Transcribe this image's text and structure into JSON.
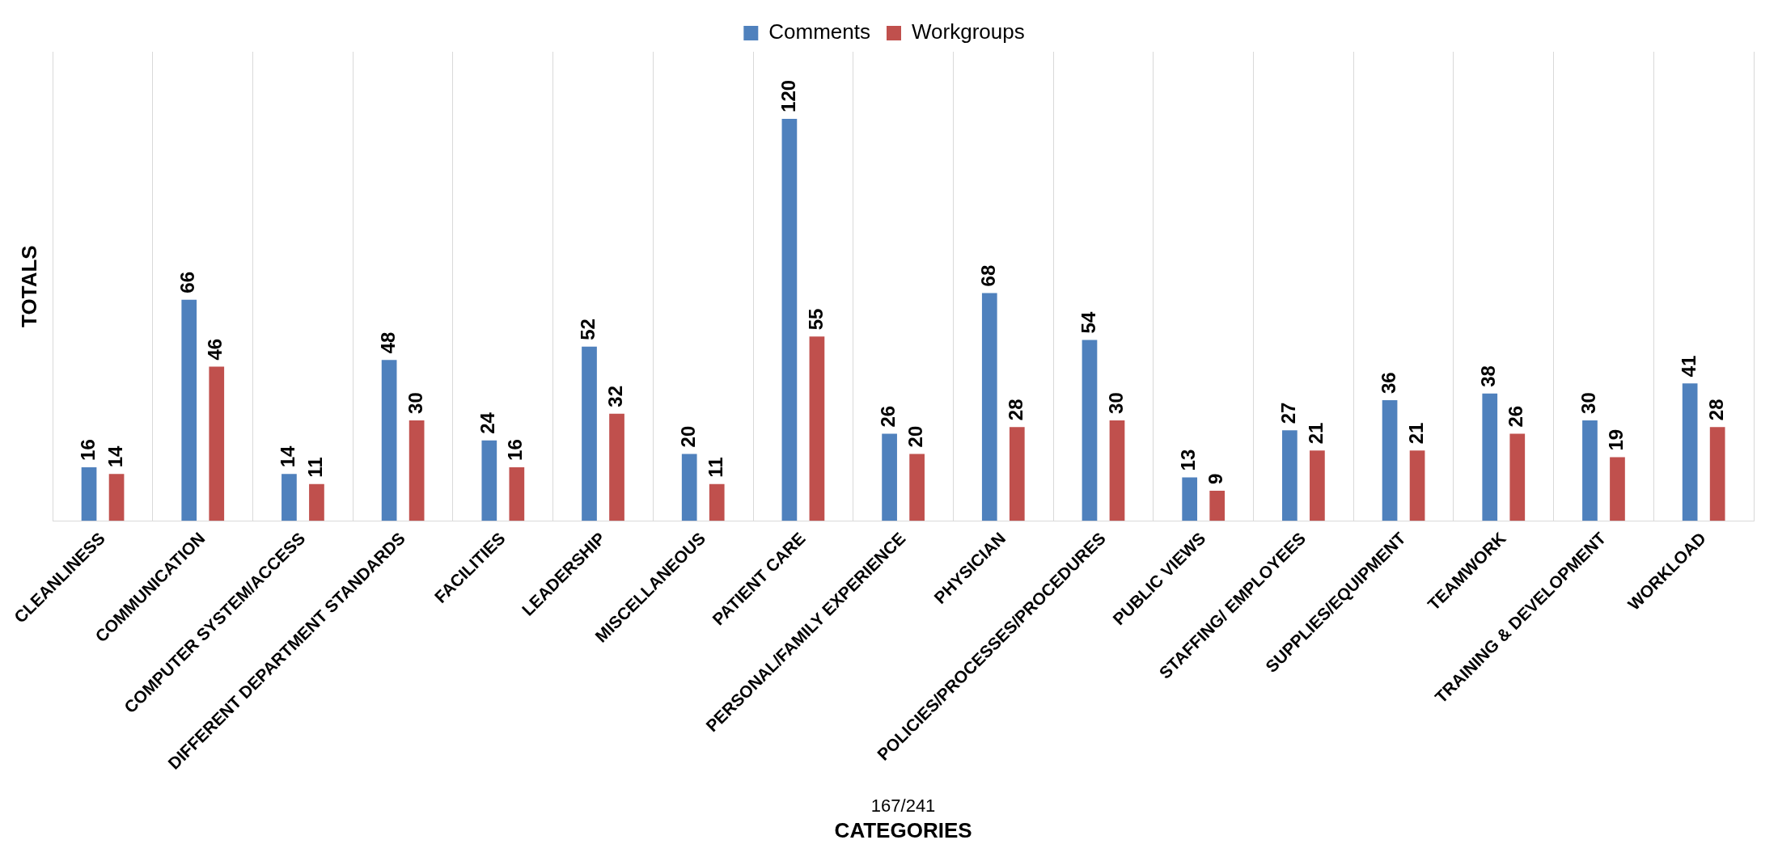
{
  "chart_data": {
    "type": "bar",
    "xlabel": "CATEGORIES",
    "ylabel": "TOTALS",
    "categories": [
      "CLEANLINESS",
      "COMMUNICATION",
      "COMPUTER SYSTEM/ACCESS",
      "DIFFERENT DEPARTMENT STANDARDS",
      "FACILITIES",
      "LEADERSHIP",
      "MISCELLANEOUS",
      "PATIENT CARE",
      "PERSONAL/FAMILY EXPERIENCE",
      "PHYSICIAN",
      "POLICIES/PROCESSES/PROCEDURES",
      "PUBLIC VIEWS",
      "STAFFING/ EMPLOYEES",
      "SUPPLIES/EQUIPMENT",
      "TEAMWORK",
      "TRAINING & DEVELOPMENT",
      "WORKLOAD"
    ],
    "series": [
      {
        "name": "Comments",
        "color": "#4f81bd",
        "values": [
          16,
          66,
          14,
          48,
          24,
          52,
          20,
          120,
          26,
          68,
          54,
          13,
          27,
          36,
          38,
          30,
          41
        ]
      },
      {
        "name": "Workgroups",
        "color": "#c0504d",
        "values": [
          14,
          46,
          11,
          30,
          16,
          32,
          11,
          55,
          20,
          28,
          30,
          9,
          21,
          21,
          26,
          19,
          28
        ]
      }
    ],
    "data_labels": true,
    "grid": "x",
    "legend": "top",
    "annotations": [
      "167/241"
    ]
  }
}
